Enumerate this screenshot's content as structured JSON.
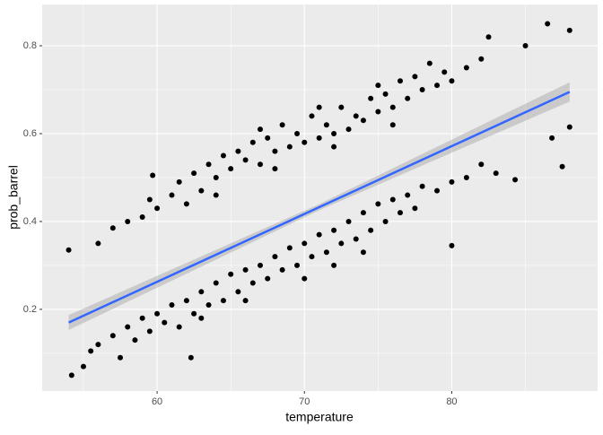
{
  "chart_data": {
    "type": "scatter",
    "x_label": "temperature",
    "y_label": "prob_barrel",
    "xlim": [
      52.2,
      89.9
    ],
    "ylim": [
      0.014,
      0.894
    ],
    "xticks": [
      60,
      70,
      80
    ],
    "yticks": [
      0.2,
      0.4,
      0.6,
      0.8
    ],
    "xminor": [
      55,
      65,
      75,
      85
    ],
    "yminor": [
      0.1,
      0.3,
      0.5,
      0.7
    ],
    "grid": true,
    "points": {
      "color": "#000000",
      "x": [
        56,
        57,
        58,
        59,
        59.5,
        59.7,
        60,
        61,
        61.5,
        62,
        62.5,
        63,
        63.5,
        64,
        64.5,
        65,
        65.5,
        66,
        66.5,
        67,
        67.5,
        68,
        68.5,
        69,
        69.5,
        70,
        70.5,
        71,
        71.5,
        72,
        72.5,
        73,
        73.5,
        74,
        74.5,
        75,
        75.5,
        76,
        76.5,
        77,
        77.5,
        78,
        78.5,
        79,
        79.5,
        80,
        81,
        82,
        82.5,
        64,
        68,
        72,
        76,
        67,
        71,
        75,
        54.2,
        55,
        55.5,
        56,
        57,
        57.5,
        58,
        58.5,
        59,
        59.5,
        60,
        60.5,
        61,
        61.5,
        62,
        62.3,
        62.5,
        63,
        63.5,
        64,
        64.5,
        65,
        65.5,
        66,
        66.5,
        67,
        67.5,
        68,
        68.5,
        69,
        69.5,
        70,
        70.5,
        71,
        71.5,
        72,
        72.5,
        73,
        73.5,
        74,
        74.5,
        75,
        75.5,
        76,
        76.5,
        77,
        77.5,
        78,
        79,
        80,
        80,
        81,
        82,
        83,
        84.3,
        66,
        70,
        74,
        63,
        72,
        54,
        85,
        86.5,
        88,
        87.5,
        86.8,
        88
      ],
      "values": [
        0.35,
        0.385,
        0.4,
        0.41,
        0.45,
        0.505,
        0.43,
        0.46,
        0.49,
        0.44,
        0.51,
        0.47,
        0.53,
        0.5,
        0.55,
        0.52,
        0.56,
        0.54,
        0.58,
        0.53,
        0.59,
        0.56,
        0.62,
        0.57,
        0.6,
        0.58,
        0.64,
        0.59,
        0.62,
        0.6,
        0.66,
        0.61,
        0.64,
        0.63,
        0.68,
        0.65,
        0.69,
        0.66,
        0.72,
        0.68,
        0.73,
        0.7,
        0.76,
        0.71,
        0.74,
        0.72,
        0.75,
        0.77,
        0.82,
        0.46,
        0.52,
        0.57,
        0.62,
        0.61,
        0.66,
        0.71,
        0.05,
        0.07,
        0.105,
        0.12,
        0.14,
        0.09,
        0.16,
        0.13,
        0.18,
        0.15,
        0.19,
        0.17,
        0.21,
        0.16,
        0.22,
        0.09,
        0.19,
        0.24,
        0.21,
        0.26,
        0.22,
        0.28,
        0.24,
        0.29,
        0.26,
        0.3,
        0.27,
        0.32,
        0.29,
        0.34,
        0.3,
        0.35,
        0.32,
        0.37,
        0.33,
        0.38,
        0.35,
        0.4,
        0.36,
        0.42,
        0.38,
        0.44,
        0.4,
        0.45,
        0.42,
        0.46,
        0.43,
        0.48,
        0.47,
        0.49,
        0.345,
        0.5,
        0.53,
        0.51,
        0.495,
        0.22,
        0.27,
        0.33,
        0.18,
        0.3,
        0.335,
        0.8,
        0.85,
        0.835,
        0.525,
        0.59,
        0.615
      ]
    },
    "fit": {
      "color": "#3366ff",
      "band_color": "#999999",
      "x": [
        54,
        71,
        88
      ],
      "values": [
        0.17,
        0.4325,
        0.695
      ],
      "lower": [
        0.153,
        0.4255,
        0.673
      ],
      "upper": [
        0.187,
        0.4395,
        0.717
      ]
    }
  }
}
